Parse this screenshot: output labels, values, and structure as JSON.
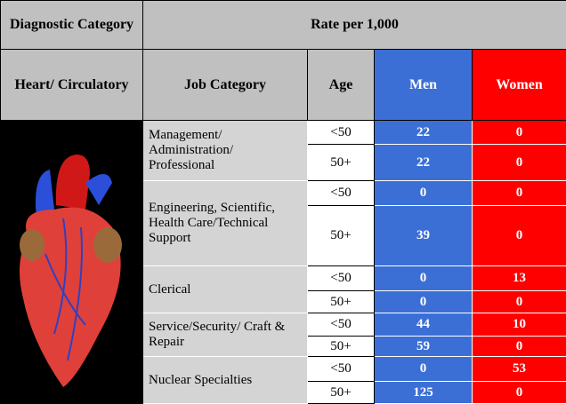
{
  "header": {
    "diagnostic_category": "Diagnostic Category",
    "rate": "Rate per 1,000"
  },
  "subheader": {
    "diagnosis": "Heart/ Circulatory",
    "job": "Job Category",
    "age": "Age",
    "men": "Men",
    "women": "Women"
  },
  "groups": [
    {
      "job": "Management/ Administration/ Professional",
      "rows": [
        {
          "age": "<50",
          "men": 22,
          "women": 0
        },
        {
          "age": "50+",
          "men": 22,
          "women": 0
        }
      ]
    },
    {
      "job": "Engineering, Scientific, Health Care/Technical Support",
      "rows": [
        {
          "age": "<50",
          "men": 0,
          "women": 0
        },
        {
          "age": "50+",
          "men": 39,
          "women": 0
        }
      ]
    },
    {
      "job": "Clerical",
      "rows": [
        {
          "age": "<50",
          "men": 0,
          "women": 13
        },
        {
          "age": "50+",
          "men": 0,
          "women": 0
        }
      ]
    },
    {
      "job": "Service/Security/ Craft & Repair",
      "rows": [
        {
          "age": "<50",
          "men": 44,
          "women": 10
        },
        {
          "age": "50+",
          "men": 59,
          "women": 0
        }
      ]
    },
    {
      "job": "Nuclear Specialties",
      "rows": [
        {
          "age": "<50",
          "men": 0,
          "women": 53
        },
        {
          "age": "50+",
          "men": 125,
          "women": 0
        }
      ]
    }
  ]
}
